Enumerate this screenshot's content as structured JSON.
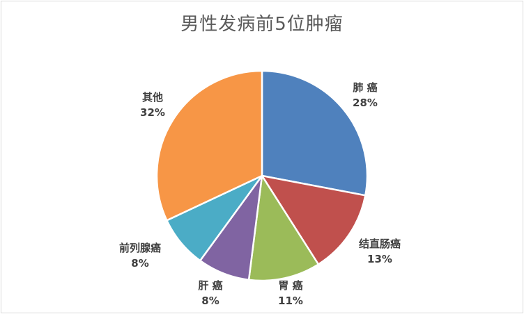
{
  "chart_data": {
    "type": "pie",
    "title": "男性发病前5位肿瘤",
    "slices": [
      {
        "name": "肺 癌",
        "value": 28,
        "label": "28%",
        "color": "#4f81bd"
      },
      {
        "name": "结直肠癌",
        "value": 13,
        "label": "13%",
        "color": "#c0504d"
      },
      {
        "name": "胃 癌",
        "value": 11,
        "label": "11%",
        "color": "#9bbb59"
      },
      {
        "name": "肝 癌",
        "value": 8,
        "label": "8%",
        "color": "#8064a2"
      },
      {
        "name": "前列腺癌",
        "value": 8,
        "label": "8%",
        "color": "#4bacc6"
      },
      {
        "name": "其他",
        "value": 32,
        "label": "32%",
        "color": "#f79646"
      }
    ],
    "start_angle_deg": 0,
    "direction": "clockwise",
    "legend": "none"
  }
}
